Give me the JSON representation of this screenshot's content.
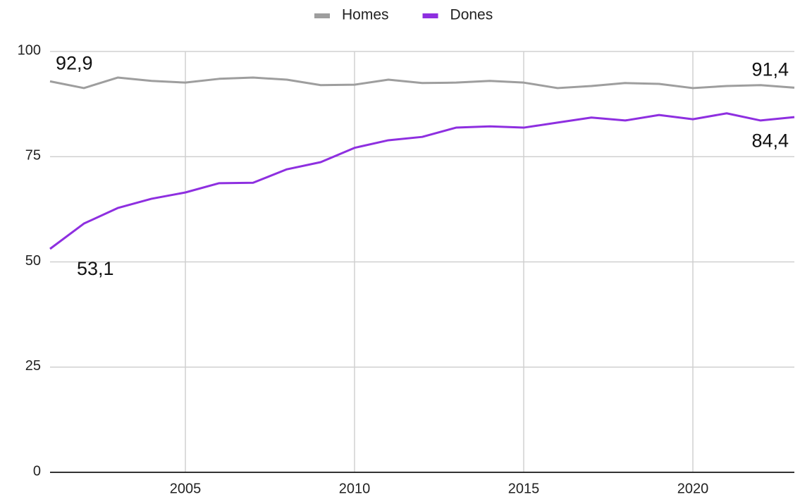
{
  "chart_data": {
    "type": "line",
    "x": [
      2001,
      2002,
      2003,
      2004,
      2005,
      2006,
      2007,
      2008,
      2009,
      2010,
      2011,
      2012,
      2013,
      2014,
      2015,
      2016,
      2017,
      2018,
      2019,
      2020,
      2021,
      2022,
      2023
    ],
    "series": [
      {
        "name": "Homes",
        "color": "#9e9e9e",
        "values": [
          92.9,
          91.3,
          93.8,
          93.0,
          92.6,
          93.5,
          93.8,
          93.3,
          92.0,
          92.1,
          93.3,
          92.5,
          92.6,
          93.0,
          92.6,
          91.3,
          91.8,
          92.5,
          92.3,
          91.3,
          91.8,
          92.0,
          91.4
        ],
        "value_labels": [
          "92,9",
          null,
          null,
          null,
          null,
          null,
          null,
          null,
          null,
          null,
          null,
          null,
          null,
          null,
          null,
          null,
          null,
          null,
          null,
          null,
          null,
          null,
          "91,4"
        ]
      },
      {
        "name": "Dones",
        "color": "#8e2fe0",
        "values": [
          53.1,
          59.1,
          62.8,
          65.0,
          66.5,
          68.7,
          68.8,
          72.0,
          73.7,
          77.1,
          78.9,
          79.7,
          81.9,
          82.2,
          81.9,
          83.1,
          84.3,
          83.6,
          84.9,
          83.9,
          85.3,
          83.6,
          84.4
        ],
        "value_labels": [
          "53,1",
          null,
          null,
          null,
          null,
          null,
          null,
          null,
          null,
          null,
          null,
          null,
          null,
          null,
          null,
          null,
          null,
          null,
          null,
          null,
          null,
          null,
          "84,4"
        ]
      }
    ],
    "xlim": [
      2001,
      2023
    ],
    "xticks": [
      2005,
      2010,
      2015,
      2020
    ],
    "ylim": [
      0,
      100
    ],
    "yticks": [
      0,
      25,
      50,
      75,
      100
    ],
    "grid": true,
    "legend": "top"
  }
}
